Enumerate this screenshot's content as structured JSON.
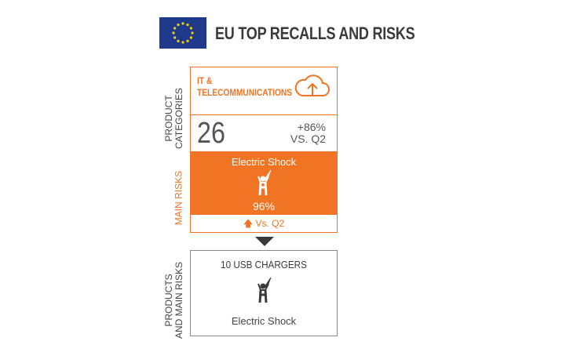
{
  "header": {
    "title": "EU TOP RECALLS AND RISKS",
    "flag_icon": "eu-flag-icon"
  },
  "side_labels": {
    "product_categories": [
      "PRODUCT",
      "CATEGORIES"
    ],
    "main_risks": "MAIN RISKS",
    "products_and_main_risks": [
      "PRODUCTS",
      "AND MAIN RISKS"
    ]
  },
  "category": {
    "name_line1": "IT &",
    "name_line2": "TELECOMMUNICATIONS",
    "icon": "cloud-upload-icon",
    "count": "26",
    "change": "+86%",
    "change_vs": "VS. Q2"
  },
  "risk": {
    "name": "Electric Shock",
    "icon": "electric-shock-icon",
    "percent": "96%",
    "trend_icon": "arrow-up-icon",
    "trend_label": "Vs. Q2"
  },
  "products": {
    "title": "10 USB CHARGERS",
    "risk": "Electric Shock",
    "icon": "electric-shock-icon"
  },
  "colors": {
    "accent": "#f07423",
    "text": "#3a3a3a",
    "flag": "#1f3a8a",
    "flag_stars": "#f5d300"
  }
}
